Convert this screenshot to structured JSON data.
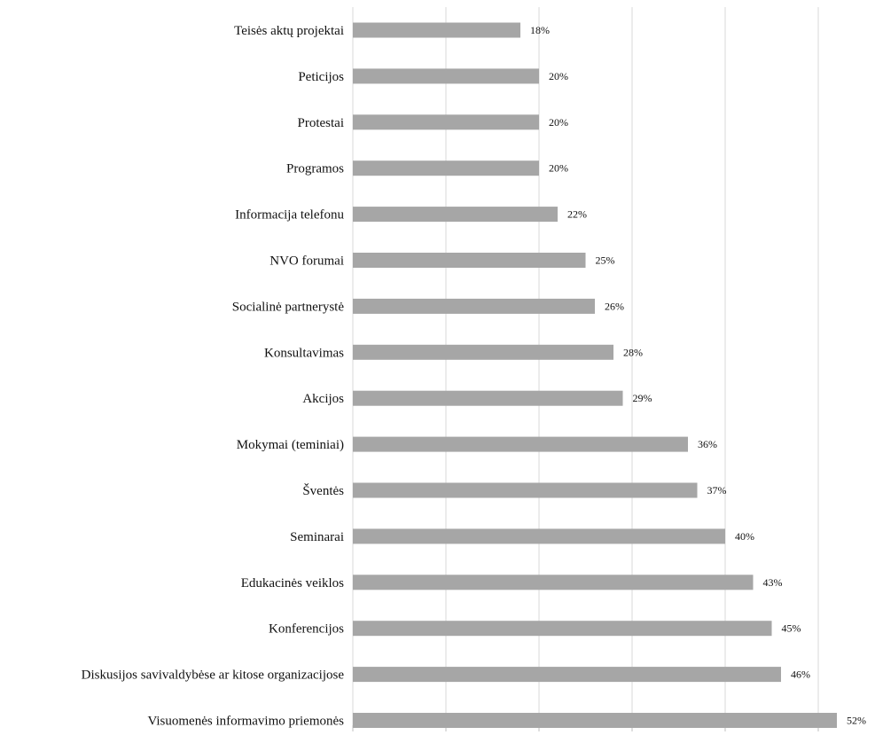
{
  "chart_data": {
    "type": "bar",
    "orientation": "horizontal",
    "title": "",
    "xlabel": "",
    "ylabel": "",
    "xlim": [
      0,
      55
    ],
    "grid": true,
    "categories": [
      "Teisės aktų projektai",
      "Peticijos",
      "Protestai",
      "Programos",
      "Informacija telefonu",
      "NVO forumai",
      "Socialinė partnerystė",
      "Konsultavimas",
      "Akcijos",
      "Mokymai (teminiai)",
      "Šventės",
      "Seminarai",
      "Edukacinės veiklos",
      "Konferencijos",
      "Diskusijos savivaldybėse ar kitose organizacijose",
      "Visuomenės informavimo priemonės"
    ],
    "values": [
      18,
      20,
      20,
      20,
      22,
      25,
      26,
      28,
      29,
      36,
      37,
      40,
      43,
      45,
      46,
      52
    ],
    "value_labels": [
      "18%",
      "20%",
      "20%",
      "20%",
      "22%",
      "25%",
      "26%",
      "28%",
      "29%",
      "36%",
      "37%",
      "40%",
      "43%",
      "45%",
      "46%",
      "52%"
    ],
    "bar_color": "#a6a6a6",
    "grid_color": "#d9d9d9"
  }
}
